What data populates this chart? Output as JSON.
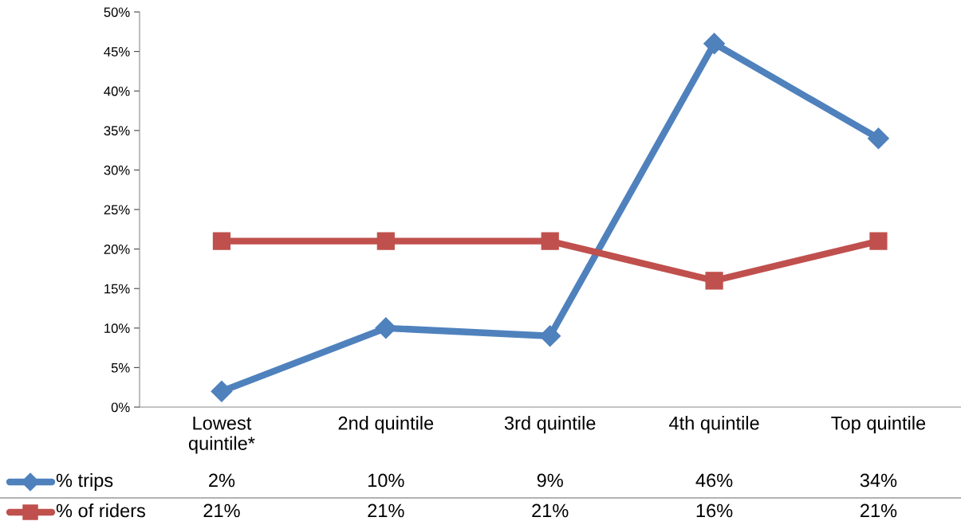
{
  "chart_data": {
    "type": "line",
    "categories": [
      "Lowest\nquintile*",
      "2nd quintile",
      "3rd quintile",
      "4th quintile",
      "Top quintile"
    ],
    "series": [
      {
        "name": "% trips",
        "color": "#4f81bd",
        "marker": "diamond",
        "values": [
          2,
          10,
          9,
          46,
          34
        ],
        "value_labels": [
          "2%",
          "10%",
          "9%",
          "46%",
          "34%"
        ]
      },
      {
        "name": "% of riders",
        "color": "#c0504d",
        "marker": "square",
        "values": [
          21,
          21,
          21,
          16,
          21
        ],
        "value_labels": [
          "21%",
          "21%",
          "21%",
          "16%",
          "21%"
        ]
      }
    ],
    "ylim": [
      0,
      50
    ],
    "yticks": [
      {
        "value": 0,
        "label": "0%"
      },
      {
        "value": 5,
        "label": "5%"
      },
      {
        "value": 10,
        "label": "10%"
      },
      {
        "value": 15,
        "label": "15%"
      },
      {
        "value": 20,
        "label": "20%"
      },
      {
        "value": 25,
        "label": "25%"
      },
      {
        "value": 30,
        "label": "30%"
      },
      {
        "value": 35,
        "label": "35%"
      },
      {
        "value": 40,
        "label": "40%"
      },
      {
        "value": 45,
        "label": "45%"
      },
      {
        "value": 50,
        "label": "50%"
      }
    ],
    "grid": false,
    "legend": "bottom",
    "line_style": "solid"
  }
}
